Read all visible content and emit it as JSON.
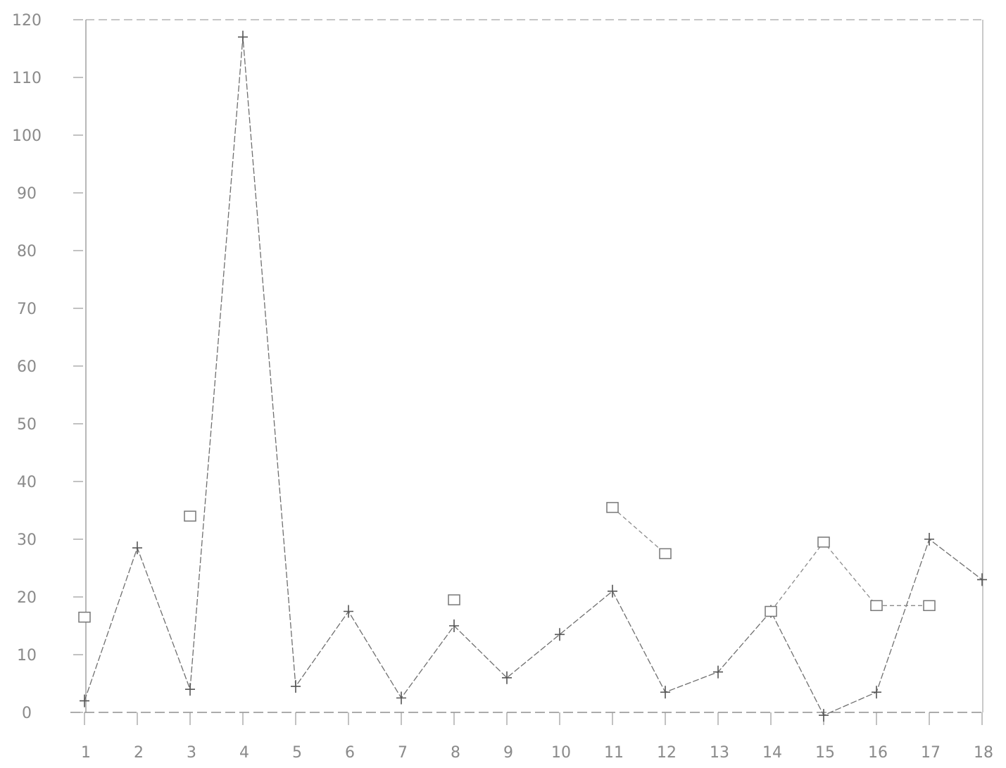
{
  "chart_data": {
    "type": "line",
    "title": "",
    "xlabel": "",
    "ylabel": "",
    "categories": [
      "1",
      "2",
      "3",
      "4",
      "5",
      "6",
      "7",
      "8",
      "9",
      "10",
      "11",
      "12",
      "13",
      "14",
      "15",
      "16",
      "17",
      "18"
    ],
    "ylim": [
      0,
      120
    ],
    "yticks": [
      0,
      10,
      20,
      30,
      40,
      50,
      60,
      70,
      80,
      90,
      100,
      110,
      120
    ],
    "grid": false,
    "series": [
      {
        "marker": "plus",
        "color": "#6f6f6f",
        "values": [
          2,
          28.5,
          4,
          117,
          4.5,
          17.5,
          2.5,
          15,
          6,
          13.5,
          21,
          3.5,
          7,
          17.5,
          -0.5,
          3.5,
          30,
          23
        ]
      },
      {
        "marker": "square",
        "color": "#8a8a8a",
        "values": [
          16.5,
          null,
          34,
          null,
          null,
          null,
          null,
          19.5,
          null,
          null,
          35.5,
          27.5,
          null,
          17.5,
          29.5,
          18.5,
          18.5,
          null
        ]
      }
    ]
  }
}
